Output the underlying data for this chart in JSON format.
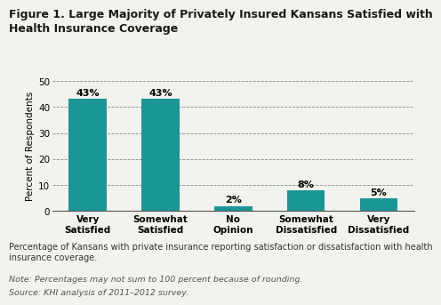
{
  "title": "Figure 1. Large Majority of Privately Insured Kansans Satisfied with\nHealth Insurance Coverage",
  "categories": [
    "Very\nSatisfied",
    "Somewhat\nSatisfied",
    "No\nOpinion",
    "Somewhat\nDissatisfied",
    "Very\nDissatisfied"
  ],
  "values": [
    43,
    43,
    2,
    8,
    5
  ],
  "labels": [
    "43%",
    "43%",
    "2%",
    "8%",
    "5%"
  ],
  "bar_color": "#1a9696",
  "ylabel": "Percent of Respondents",
  "ylim": [
    0,
    50
  ],
  "yticks": [
    0,
    10,
    20,
    30,
    40,
    50
  ],
  "ytick_labels": [
    "0",
    "10",
    "20",
    "30",
    "40",
    "50"
  ],
  "footnote1": "Percentage of Kansans with private insurance reporting satisfaction or dissatisfaction with health\ninsurance coverage.",
  "footnote2": "Note: Percentages may not sum to 100 percent because of rounding.",
  "footnote3": "Source: KHI analysis of 2011–2012 survey.",
  "background_color": "#f2f2ee",
  "title_fontsize": 9.0,
  "label_fontsize": 8.0,
  "axis_fontsize": 7.5,
  "ylabel_fontsize": 7.5,
  "footnote_fontsize": 7.0,
  "footnote_note_fontsize": 6.8
}
